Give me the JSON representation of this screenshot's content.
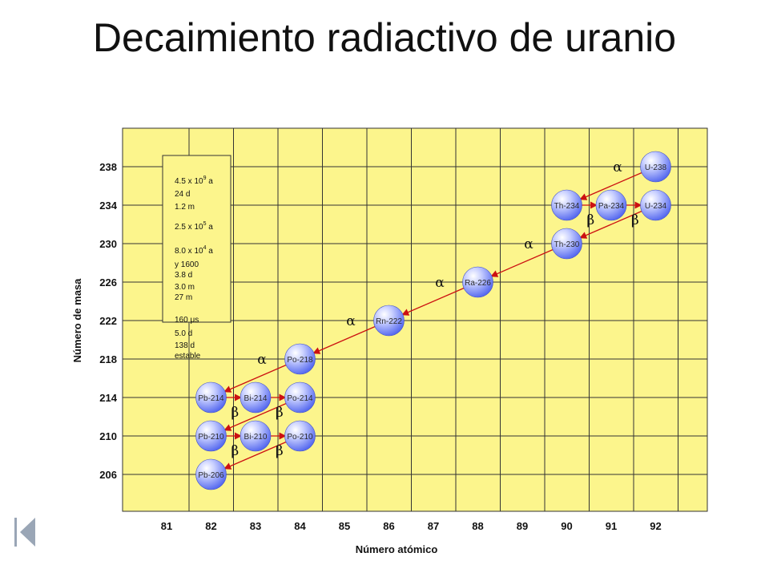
{
  "title": "Decaimiento radiactivo de uranio",
  "xlabel": "Número atómico",
  "ylabel": "Número de masa",
  "x_ticks": [
    "81",
    "82",
    "83",
    "84",
    "85",
    "86",
    "87",
    "88",
    "89",
    "90",
    "91",
    "92"
  ],
  "y_ticks": [
    "238",
    "234",
    "230",
    "226",
    "222",
    "218",
    "214",
    "210",
    "206"
  ],
  "colors": {
    "plot_bg": "#fcf58c",
    "grid": "#333333",
    "nuclide": "#4f63ee",
    "arrow": "#cc1111"
  },
  "nuclides": [
    {
      "label": "U-238",
      "z": 92,
      "a": 238
    },
    {
      "label": "Th-234",
      "z": 90,
      "a": 234
    },
    {
      "label": "Pa-234",
      "z": 91,
      "a": 234
    },
    {
      "label": "U-234",
      "z": 92,
      "a": 234
    },
    {
      "label": "Th-230",
      "z": 90,
      "a": 230
    },
    {
      "label": "Ra-226",
      "z": 88,
      "a": 226
    },
    {
      "label": "Rn-222",
      "z": 86,
      "a": 222
    },
    {
      "label": "Po-218",
      "z": 84,
      "a": 218
    },
    {
      "label": "Pb-214",
      "z": 82,
      "a": 214
    },
    {
      "label": "Bi-214",
      "z": 83,
      "a": 214
    },
    {
      "label": "Po-214",
      "z": 84,
      "a": 214
    },
    {
      "label": "Pb-210",
      "z": 82,
      "a": 210
    },
    {
      "label": "Bi-210",
      "z": 83,
      "a": 210
    },
    {
      "label": "Po-210",
      "z": 84,
      "a": 210
    },
    {
      "label": "Pb-206",
      "z": 82,
      "a": 206
    }
  ],
  "decays": [
    {
      "type": "alpha",
      "from": "U-238",
      "to": "Th-234"
    },
    {
      "type": "beta",
      "from": "Th-234",
      "to": "Pa-234"
    },
    {
      "type": "beta",
      "from": "Pa-234",
      "to": "U-234"
    },
    {
      "type": "alpha",
      "from": "U-234",
      "to": "Th-230"
    },
    {
      "type": "alpha",
      "from": "Th-230",
      "to": "Ra-226"
    },
    {
      "type": "alpha",
      "from": "Ra-226",
      "to": "Rn-222"
    },
    {
      "type": "alpha",
      "from": "Rn-222",
      "to": "Po-218"
    },
    {
      "type": "alpha",
      "from": "Po-218",
      "to": "Pb-214"
    },
    {
      "type": "beta",
      "from": "Pb-214",
      "to": "Bi-214"
    },
    {
      "type": "beta",
      "from": "Bi-214",
      "to": "Po-214"
    },
    {
      "type": "alpha",
      "from": "Po-214",
      "to": "Pb-210"
    },
    {
      "type": "beta",
      "from": "Pb-210",
      "to": "Bi-210"
    },
    {
      "type": "beta",
      "from": "Bi-210",
      "to": "Po-210"
    },
    {
      "type": "alpha",
      "from": "Po-210",
      "to": "Pb-206"
    }
  ],
  "symbols": {
    "alpha": "α",
    "beta": "β"
  },
  "half_lives": [
    {
      "base": "4.5 x 10",
      "exp": "9",
      "unit": " a"
    },
    {
      "base": "24 d"
    },
    {
      "base": "1.2 m"
    },
    {
      "base": "2.5 x 10",
      "exp": "5",
      "unit": " a"
    },
    {
      "base": "8.0 x 10",
      "exp": "4",
      "unit": " a"
    },
    {
      "base": "y 1600"
    },
    {
      "base": "3.8 d"
    },
    {
      "base": "3.0 m"
    },
    {
      "base": "27 m"
    },
    {
      "base": "160 μs"
    },
    {
      "base": "5.0 d"
    },
    {
      "base": "138 d"
    },
    {
      "base": "estable"
    }
  ]
}
